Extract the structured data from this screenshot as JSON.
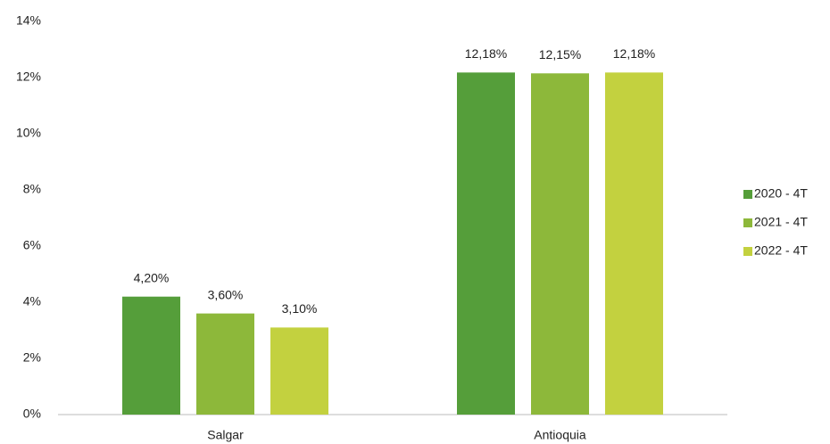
{
  "chart_data": {
    "type": "bar",
    "categories": [
      "Salgar",
      "Antioquia"
    ],
    "series": [
      {
        "name": "2020 - 4T",
        "color": "#559e3a",
        "values": [
          4.2,
          12.18
        ],
        "value_labels": [
          "4,20%",
          "12,18%"
        ]
      },
      {
        "name": "2021 - 4T",
        "color": "#8db83a",
        "values": [
          3.6,
          12.15
        ],
        "value_labels": [
          "3,60%",
          "12,15%"
        ]
      },
      {
        "name": "2022 - 4T",
        "color": "#c3d13f",
        "values": [
          3.1,
          12.18
        ],
        "value_labels": [
          "3,10%",
          "12,18%"
        ]
      }
    ],
    "ylim": [
      0,
      14
    ],
    "yticks": [
      {
        "value": 0,
        "label": "0%"
      },
      {
        "value": 2,
        "label": "2%"
      },
      {
        "value": 4,
        "label": "4%"
      },
      {
        "value": 6,
        "label": "6%"
      },
      {
        "value": 8,
        "label": "8%"
      },
      {
        "value": 10,
        "label": "10%"
      },
      {
        "value": 12,
        "label": "12%"
      },
      {
        "value": 14,
        "label": "14%"
      }
    ],
    "grid": false,
    "legend": "right"
  }
}
